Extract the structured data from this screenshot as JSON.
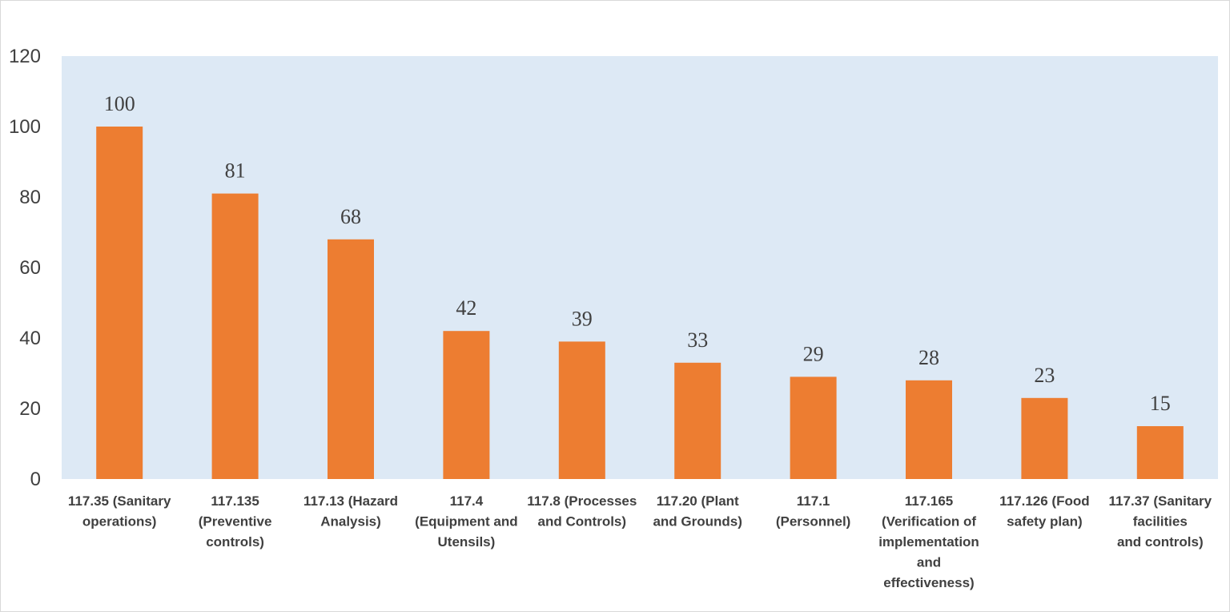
{
  "chart_data": {
    "type": "bar",
    "title": "",
    "xlabel": "",
    "ylabel": "",
    "ylim": [
      0,
      120
    ],
    "yticks": [
      0,
      20,
      40,
      60,
      80,
      100,
      120
    ],
    "grid": false,
    "legend": "none",
    "plot_background": "#dde9f5",
    "bar_color": "#ed7d31",
    "categories": [
      [
        "117.35 (Sanitary",
        "operations)"
      ],
      [
        "117.135",
        "(Preventive",
        "controls)"
      ],
      [
        "117.13 (Hazard",
        "Analysis)"
      ],
      [
        "117.4",
        "(Equipment and",
        "Utensils)"
      ],
      [
        "117.8 (Processes",
        "and Controls)"
      ],
      [
        "117.20 (Plant",
        "and Grounds)"
      ],
      [
        "117.1",
        "(Personnel)"
      ],
      [
        "117.165",
        "(Verification of",
        "implementation",
        "and",
        "effectiveness)"
      ],
      [
        "117.126 (Food",
        "safety plan)"
      ],
      [
        "117.37 (Sanitary",
        "facilities",
        "and controls)"
      ]
    ],
    "values": [
      100,
      81,
      68,
      42,
      39,
      33,
      29,
      28,
      23,
      15
    ]
  }
}
